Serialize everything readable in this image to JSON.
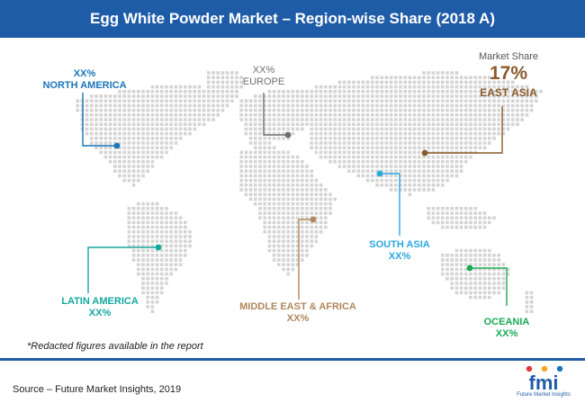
{
  "title": "Egg White Powder Market – Region-wise Share (2018 A)",
  "market_share_caption": "Market Share",
  "regions": {
    "north_america": {
      "value": "XX%",
      "name": "NORTH AMERICA",
      "color": "#1a75bb"
    },
    "europe": {
      "value": "XX%",
      "name": "EUROPE",
      "color": "#6d6e71"
    },
    "east_asia": {
      "value": "17%",
      "name": "EAST ASIA",
      "color": "#8a5a2b"
    },
    "south_asia": {
      "name": "SOUTH ASIA",
      "value": "XX%",
      "color": "#29a8e0"
    },
    "latin_america": {
      "name": "LATIN AMERICA",
      "value": "XX%",
      "color": "#13a89e"
    },
    "middle_east_africa": {
      "name": "MIDDLE EAST & AFRICA",
      "value": "XX%",
      "color": "#b0875a"
    },
    "oceania": {
      "name": "OCEANIA",
      "value": "XX%",
      "color": "#1aaa55"
    }
  },
  "footnote": "*Redacted figures available in the report",
  "source": "Source – Future Market Insights, 2019",
  "logo": {
    "mark": "fmi",
    "subtitle": "Future Market Insights"
  },
  "colors": {
    "brand": "#1f5ca8",
    "map_dots": "#d4d4d4"
  }
}
